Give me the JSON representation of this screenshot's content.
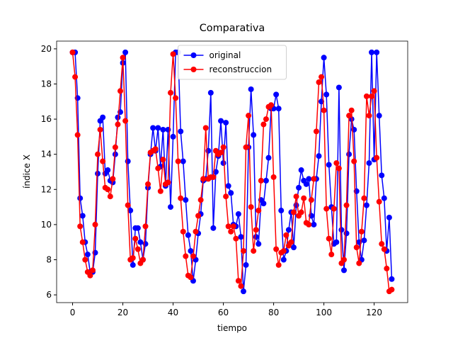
{
  "chart_data": {
    "type": "line",
    "title": "Comparativa",
    "x_label": "tiempo",
    "y_label": "índice X",
    "x": [
      0,
      1,
      2,
      3,
      4,
      5,
      6,
      7,
      8,
      9,
      10,
      11,
      12,
      13,
      14,
      15,
      16,
      17,
      18,
      19,
      20,
      21,
      22,
      23,
      24,
      25,
      26,
      27,
      28,
      29,
      30,
      31,
      32,
      33,
      34,
      35,
      36,
      37,
      38,
      39,
      40,
      41,
      42,
      43,
      44,
      45,
      46,
      47,
      48,
      49,
      50,
      51,
      52,
      53,
      54,
      55,
      56,
      57,
      58,
      59,
      60,
      61,
      62,
      63,
      64,
      65,
      66,
      67,
      68,
      69,
      70,
      71,
      72,
      73,
      74,
      75,
      76,
      77,
      78,
      79,
      80,
      81,
      82,
      83,
      84,
      85,
      86,
      87,
      88,
      89,
      90,
      91,
      92,
      93,
      94,
      95,
      96,
      97,
      98,
      99,
      100,
      101,
      102,
      103,
      104,
      105,
      106,
      107,
      108,
      109,
      110,
      111,
      112,
      113,
      114,
      115,
      116,
      117,
      118,
      119,
      120,
      121,
      122,
      123,
      124,
      125,
      126,
      127
    ],
    "series": [
      {
        "name": "original",
        "color": "#0000ff",
        "values": [
          19.8,
          19.8,
          17.2,
          11.5,
          10.5,
          9.0,
          8.3,
          7.3,
          7.3,
          8.4,
          12.9,
          15.9,
          16.1,
          12.9,
          13.1,
          12.5,
          12.4,
          14.0,
          16.1,
          16.4,
          19.2,
          19.8,
          13.6,
          10.8,
          7.7,
          9.8,
          9.8,
          9.0,
          8.0,
          8.9,
          12.1,
          14.0,
          15.5,
          14.2,
          15.5,
          13.3,
          15.4,
          12.2,
          15.4,
          11.0,
          15.0,
          19.8,
          19.8,
          15.3,
          13.6,
          11.4,
          9.4,
          8.5,
          6.8,
          8.0,
          9.5,
          10.6,
          12.5,
          12.6,
          14.2,
          17.5,
          9.8,
          13.0,
          13.9,
          15.9,
          13.5,
          15.8,
          12.2,
          11.8,
          10.0,
          9.9,
          10.6,
          9.3,
          6.2,
          7.7,
          14.4,
          17.7,
          15.1,
          9.3,
          8.9,
          11.4,
          11.2,
          12.5,
          13.8,
          16.6,
          16.6,
          17.4,
          16.6,
          10.8,
          8.0,
          8.5,
          9.7,
          10.7,
          8.7,
          11.1,
          12.1,
          13.1,
          12.5,
          12.3,
          12.6,
          10.5,
          10.0,
          12.6,
          13.9,
          17.0,
          19.5,
          17.4,
          13.4,
          11.0,
          8.9,
          9.0,
          17.8,
          9.7,
          7.4,
          9.5,
          14.0,
          16.0,
          15.4,
          11.9,
          9.0,
          8.0,
          9.1,
          11.1,
          13.5,
          19.8,
          13.7,
          19.8,
          16.2,
          12.8,
          11.5,
          8.5,
          10.4,
          6.9
        ]
      },
      {
        "name": "reconstruccion",
        "color": "#ff0000",
        "values": [
          19.8,
          18.4,
          15.1,
          9.9,
          9.0,
          8.0,
          7.3,
          7.1,
          7.4,
          10.0,
          14.0,
          15.4,
          13.6,
          12.1,
          12.0,
          11.6,
          12.6,
          14.4,
          15.7,
          17.6,
          19.5,
          15.9,
          11.1,
          8.0,
          8.1,
          9.2,
          8.6,
          7.8,
          8.0,
          9.9,
          12.3,
          14.1,
          14.2,
          14.3,
          13.2,
          11.9,
          13.7,
          12.3,
          12.4,
          17.5,
          19.7,
          17.2,
          13.6,
          11.5,
          9.6,
          8.2,
          7.1,
          7.0,
          8.2,
          9.6,
          10.5,
          11.4,
          12.6,
          15.5,
          12.6,
          12.7,
          12.7,
          14.2,
          14.0,
          14.1,
          14.4,
          11.6,
          9.9,
          9.6,
          9.9,
          9.2,
          6.8,
          6.5,
          8.5,
          14.4,
          16.2,
          11.0,
          8.5,
          9.7,
          10.8,
          12.5,
          15.7,
          16.0,
          16.7,
          16.8,
          12.7,
          8.6,
          7.7,
          8.4,
          8.5,
          9.4,
          8.8,
          9.0,
          10.7,
          11.6,
          10.5,
          10.7,
          11.5,
          10.1,
          10.0,
          11.4,
          12.6,
          15.3,
          18.1,
          18.4,
          16.5,
          10.9,
          9.2,
          8.3,
          10.9,
          13.5,
          13.2,
          7.8,
          8.0,
          11.1,
          16.2,
          16.5,
          13.6,
          8.7,
          7.8,
          9.6,
          11.5,
          17.3,
          16.2,
          17.3,
          17.6,
          13.8,
          11.3,
          8.9,
          8.6,
          7.5,
          6.2,
          6.3
        ]
      }
    ],
    "xlim": [
      -6.35,
      133.35
    ],
    "ylim": [
      5.56,
      20.44
    ],
    "xticks": [
      0,
      20,
      40,
      60,
      80,
      100,
      120
    ],
    "yticks": [
      6,
      8,
      10,
      12,
      14,
      16,
      18,
      20
    ],
    "legend": "upper center"
  }
}
